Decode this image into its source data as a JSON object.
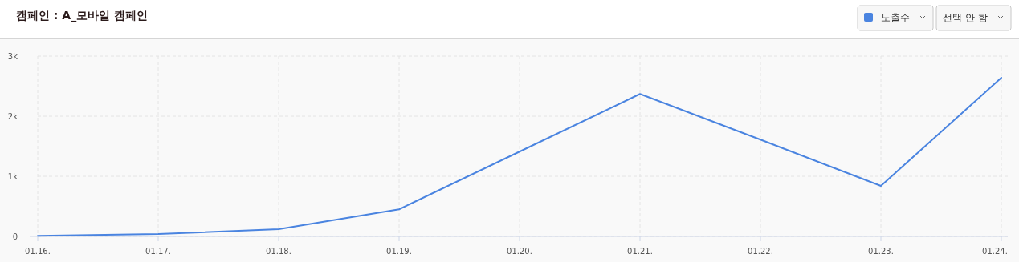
{
  "chart_data": {
    "type": "line",
    "title": "캠페인 : A_모바일 캠페인",
    "categories": [
      "01.16.",
      "01.17.",
      "01.18.",
      "01.19.",
      "01.20.",
      "01.21.",
      "01.22.",
      "01.23.",
      "01.24."
    ],
    "series": [
      {
        "name": "노출수",
        "color": "#4a84e0",
        "values": [
          10,
          40,
          120,
          450,
          1410,
          2370,
          1610,
          840,
          2640
        ]
      }
    ],
    "ylim": [
      0,
      3000
    ],
    "yticks": [
      0,
      {
        "value": 1000,
        "label": "1k"
      },
      {
        "value": 2000,
        "label": "2k"
      },
      {
        "value": 3000,
        "label": "3k"
      }
    ],
    "grid": true,
    "legend": "top right",
    "marker": "none",
    "line_style": "solid",
    "annotations": [
      "선택 안 함"
    ]
  }
}
